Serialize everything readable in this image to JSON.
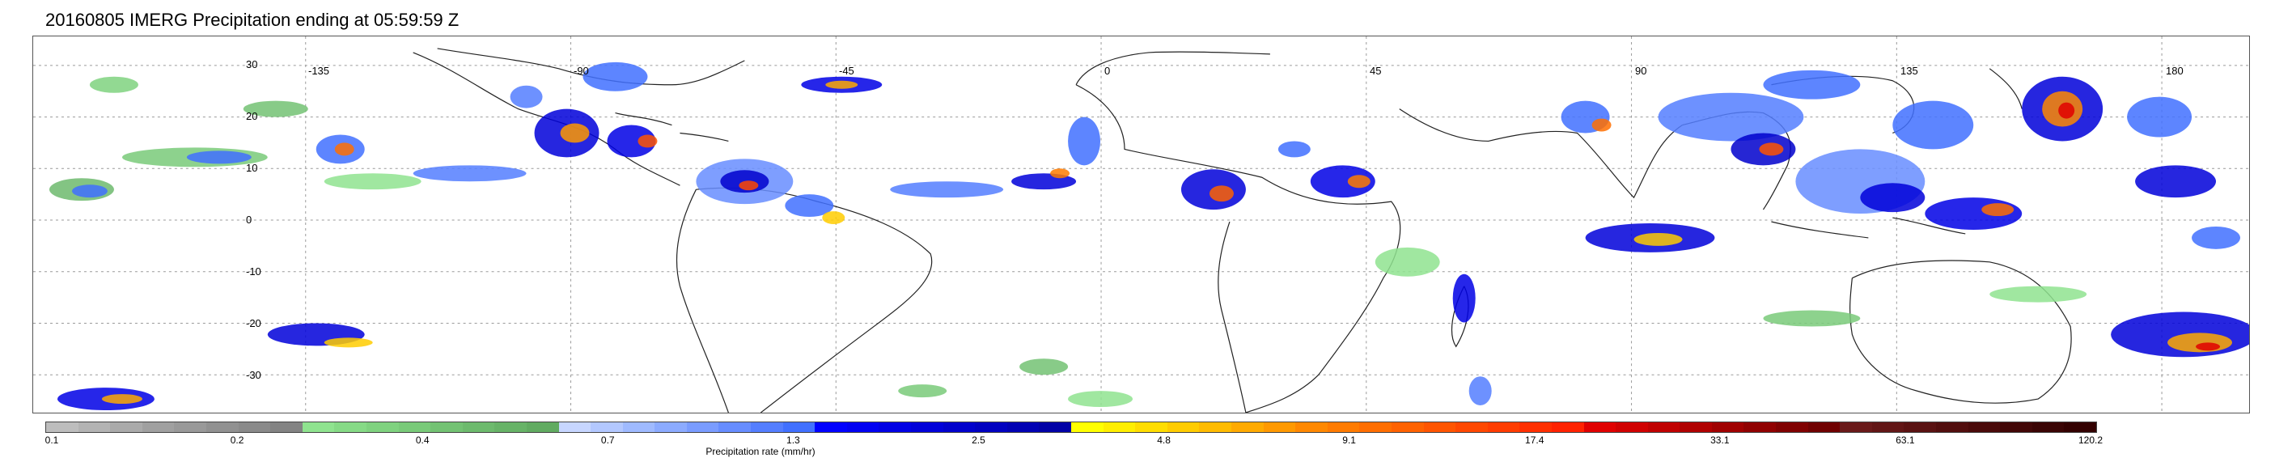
{
  "title": "20160805 IMERG Precipitation ending at 05:59:59 Z",
  "lon_labels": [
    "-135",
    "-90",
    "-45",
    "0",
    "45",
    "90",
    "135",
    "180"
  ],
  "lat_labels": [
    "30",
    "20",
    "10",
    "0",
    "-10",
    "-20",
    "-30"
  ],
  "colorbar": {
    "title": "Precipitation rate (mm/hr)",
    "labels": [
      "0.1",
      "0.2",
      "0.4",
      "0.7",
      "1.3",
      "2.5",
      "4.8",
      "9.1",
      "17.4",
      "33.1",
      "63.1",
      "120.2"
    ],
    "colors": [
      "#bdbdbd",
      "#b3b3b3",
      "#aaaaaa",
      "#a0a0a0",
      "#999999",
      "#919191",
      "#8a8a8a",
      "#838383",
      "#8fe38f",
      "#86da86",
      "#7fd27f",
      "#79ca79",
      "#73c273",
      "#6dba6d",
      "#67b367",
      "#61ab61",
      "#c7d6ff",
      "#b3c8ff",
      "#9fbaff",
      "#8cabff",
      "#7a9cff",
      "#678dff",
      "#547eff",
      "#4170ff",
      "#0000ff",
      "#0000f2",
      "#0000e5",
      "#0000d9",
      "#0000cc",
      "#0000c0",
      "#0000b3",
      "#0000a6",
      "#ffff00",
      "#ffee00",
      "#ffdd00",
      "#ffcc00",
      "#ffbb00",
      "#ffaa00",
      "#ff9900",
      "#ff8800",
      "#ff7b00",
      "#ff6e00",
      "#ff6200",
      "#ff5500",
      "#ff4800",
      "#ff3c00",
      "#ff2f00",
      "#ff2200",
      "#e00000",
      "#d00000",
      "#c00000",
      "#b00000",
      "#a00000",
      "#900000",
      "#800000",
      "#700000",
      "#6a1a1a",
      "#621616",
      "#5a1212",
      "#520e0e",
      "#4a0a0a",
      "#420707",
      "#3a0404",
      "#330000"
    ]
  }
}
